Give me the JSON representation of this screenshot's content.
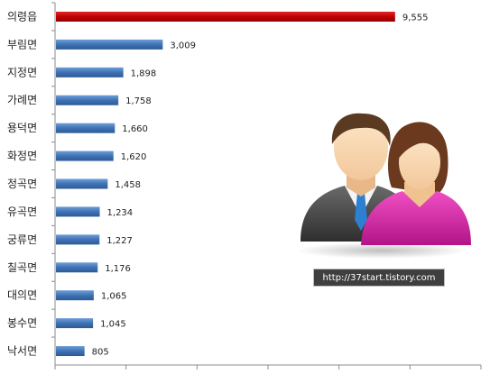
{
  "chart_data": {
    "type": "bar",
    "orientation": "horizontal",
    "categories": [
      "의령읍",
      "부림면",
      "지정면",
      "가례면",
      "용덕면",
      "화정면",
      "정곡면",
      "유곡면",
      "궁류면",
      "칠곡면",
      "대의면",
      "봉수면",
      "낙서면"
    ],
    "values": [
      9555,
      3009,
      1898,
      1758,
      1660,
      1620,
      1458,
      1234,
      1227,
      1176,
      1065,
      1045,
      805
    ],
    "value_labels": [
      "9,555",
      "3,009",
      "1,898",
      "1,758",
      "1,660",
      "1,620",
      "1,458",
      "1,234",
      "1,227",
      "1,176",
      "1,065",
      "1,045",
      "805"
    ],
    "xlim": [
      0,
      12000
    ],
    "highlight_index": 0,
    "colors": {
      "bar": "#4a7ebb",
      "highlight": "#c00000"
    },
    "grid": false,
    "legend": false
  },
  "watermark": {
    "text": "http://37start.tistory.com"
  },
  "illustration": {
    "icon": "users-couple-icon"
  }
}
